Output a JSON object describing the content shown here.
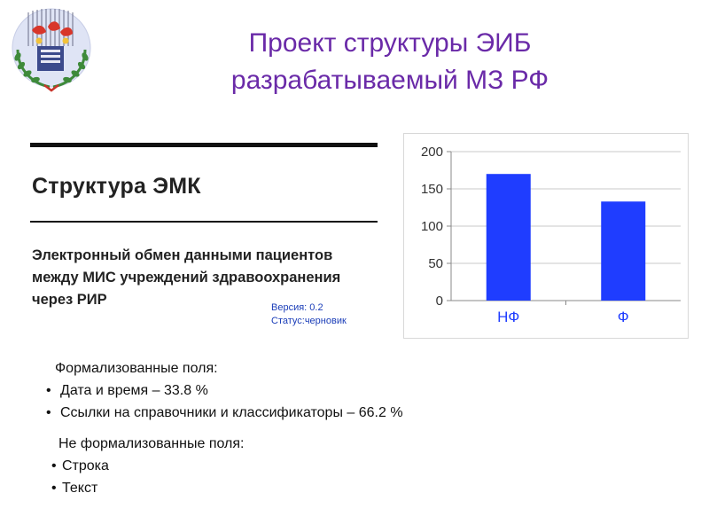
{
  "title": {
    "line1": "Проект структуры ЭИБ",
    "line2": "разрабатываемый МЗ РФ"
  },
  "document": {
    "heading": "Структура ЭМК",
    "subtitle": "Электронный обмен данными пациентов между МИС учреждений здравоохранения через РИР",
    "version": "Версия: 0.2",
    "status": "Статус:черновик"
  },
  "formalized": {
    "header": "Формализованные поля:",
    "items": [
      "Дата и время – 33.8 %",
      "Ссылки на справочники и классификаторы – 66.2 %"
    ]
  },
  "unformalized": {
    "header": "Не формализованные поля:",
    "items": [
      "Строка",
      "Текст"
    ]
  },
  "colors": {
    "title": "#6a2aa8",
    "bar": "#1f3dff",
    "meta": "#1a3db8"
  },
  "chart_data": {
    "type": "bar",
    "categories": [
      "НФ",
      "Ф"
    ],
    "values": [
      170,
      133
    ],
    "yticks": [
      0,
      50,
      100,
      150,
      200
    ],
    "ylim": [
      0,
      200
    ],
    "grid": true,
    "legend": "none",
    "title": "",
    "xlabel": "",
    "ylabel": ""
  }
}
